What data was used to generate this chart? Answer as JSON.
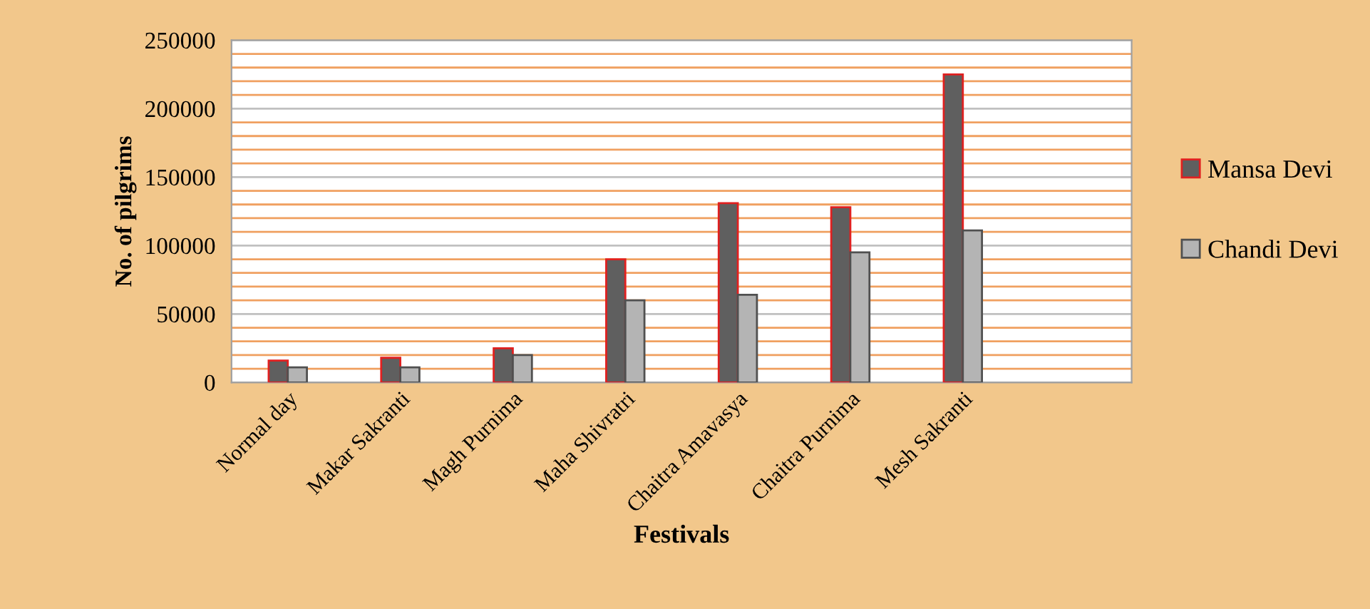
{
  "chart_data": {
    "type": "bar",
    "xlabel": "Festivals",
    "ylabel": "No. of pilgrims",
    "categories": [
      "Normal day",
      "Makar Sakranti",
      "Magh Purnima",
      "Maha Shivratri",
      "Chaitra Amavasya",
      "Chaitra Purnima",
      "Mesh Sakranti",
      null
    ],
    "series": [
      {
        "name": "Mansa Devi",
        "color": "#5f5f5f",
        "values": [
          16000,
          18000,
          25000,
          90000,
          131000,
          128000,
          225000,
          null
        ]
      },
      {
        "name": "Chandi Devi",
        "color": "#b4b4b4",
        "values": [
          11000,
          11000,
          20000,
          60000,
          64000,
          95000,
          111000,
          null
        ]
      }
    ],
    "ylim": [
      0,
      250000
    ],
    "yticks": [
      0,
      {
        "value": 10000,
        "label": null
      },
      {
        "value": 20000,
        "label": null
      },
      {
        "value": 30000,
        "label": null
      },
      {
        "value": 40000,
        "label": null
      },
      50000,
      {
        "value": 60000,
        "label": null
      },
      {
        "value": 70000,
        "label": null
      },
      {
        "value": 80000,
        "label": null
      },
      {
        "value": 90000,
        "label": null
      },
      100000,
      {
        "value": 110000,
        "label": null
      },
      {
        "value": 120000,
        "label": null
      },
      {
        "value": 130000,
        "label": null
      },
      {
        "value": 140000,
        "label": null
      },
      150000,
      {
        "value": 160000,
        "label": null
      },
      {
        "value": 170000,
        "label": null
      },
      {
        "value": 180000,
        "label": null
      },
      {
        "value": 190000,
        "label": null
      },
      200000,
      {
        "value": 210000,
        "label": null
      },
      {
        "value": 220000,
        "label": null
      },
      {
        "value": 230000,
        "label": null
      },
      {
        "value": 240000,
        "label": null
      },
      250000
    ],
    "grid": "y",
    "legend": "right"
  }
}
